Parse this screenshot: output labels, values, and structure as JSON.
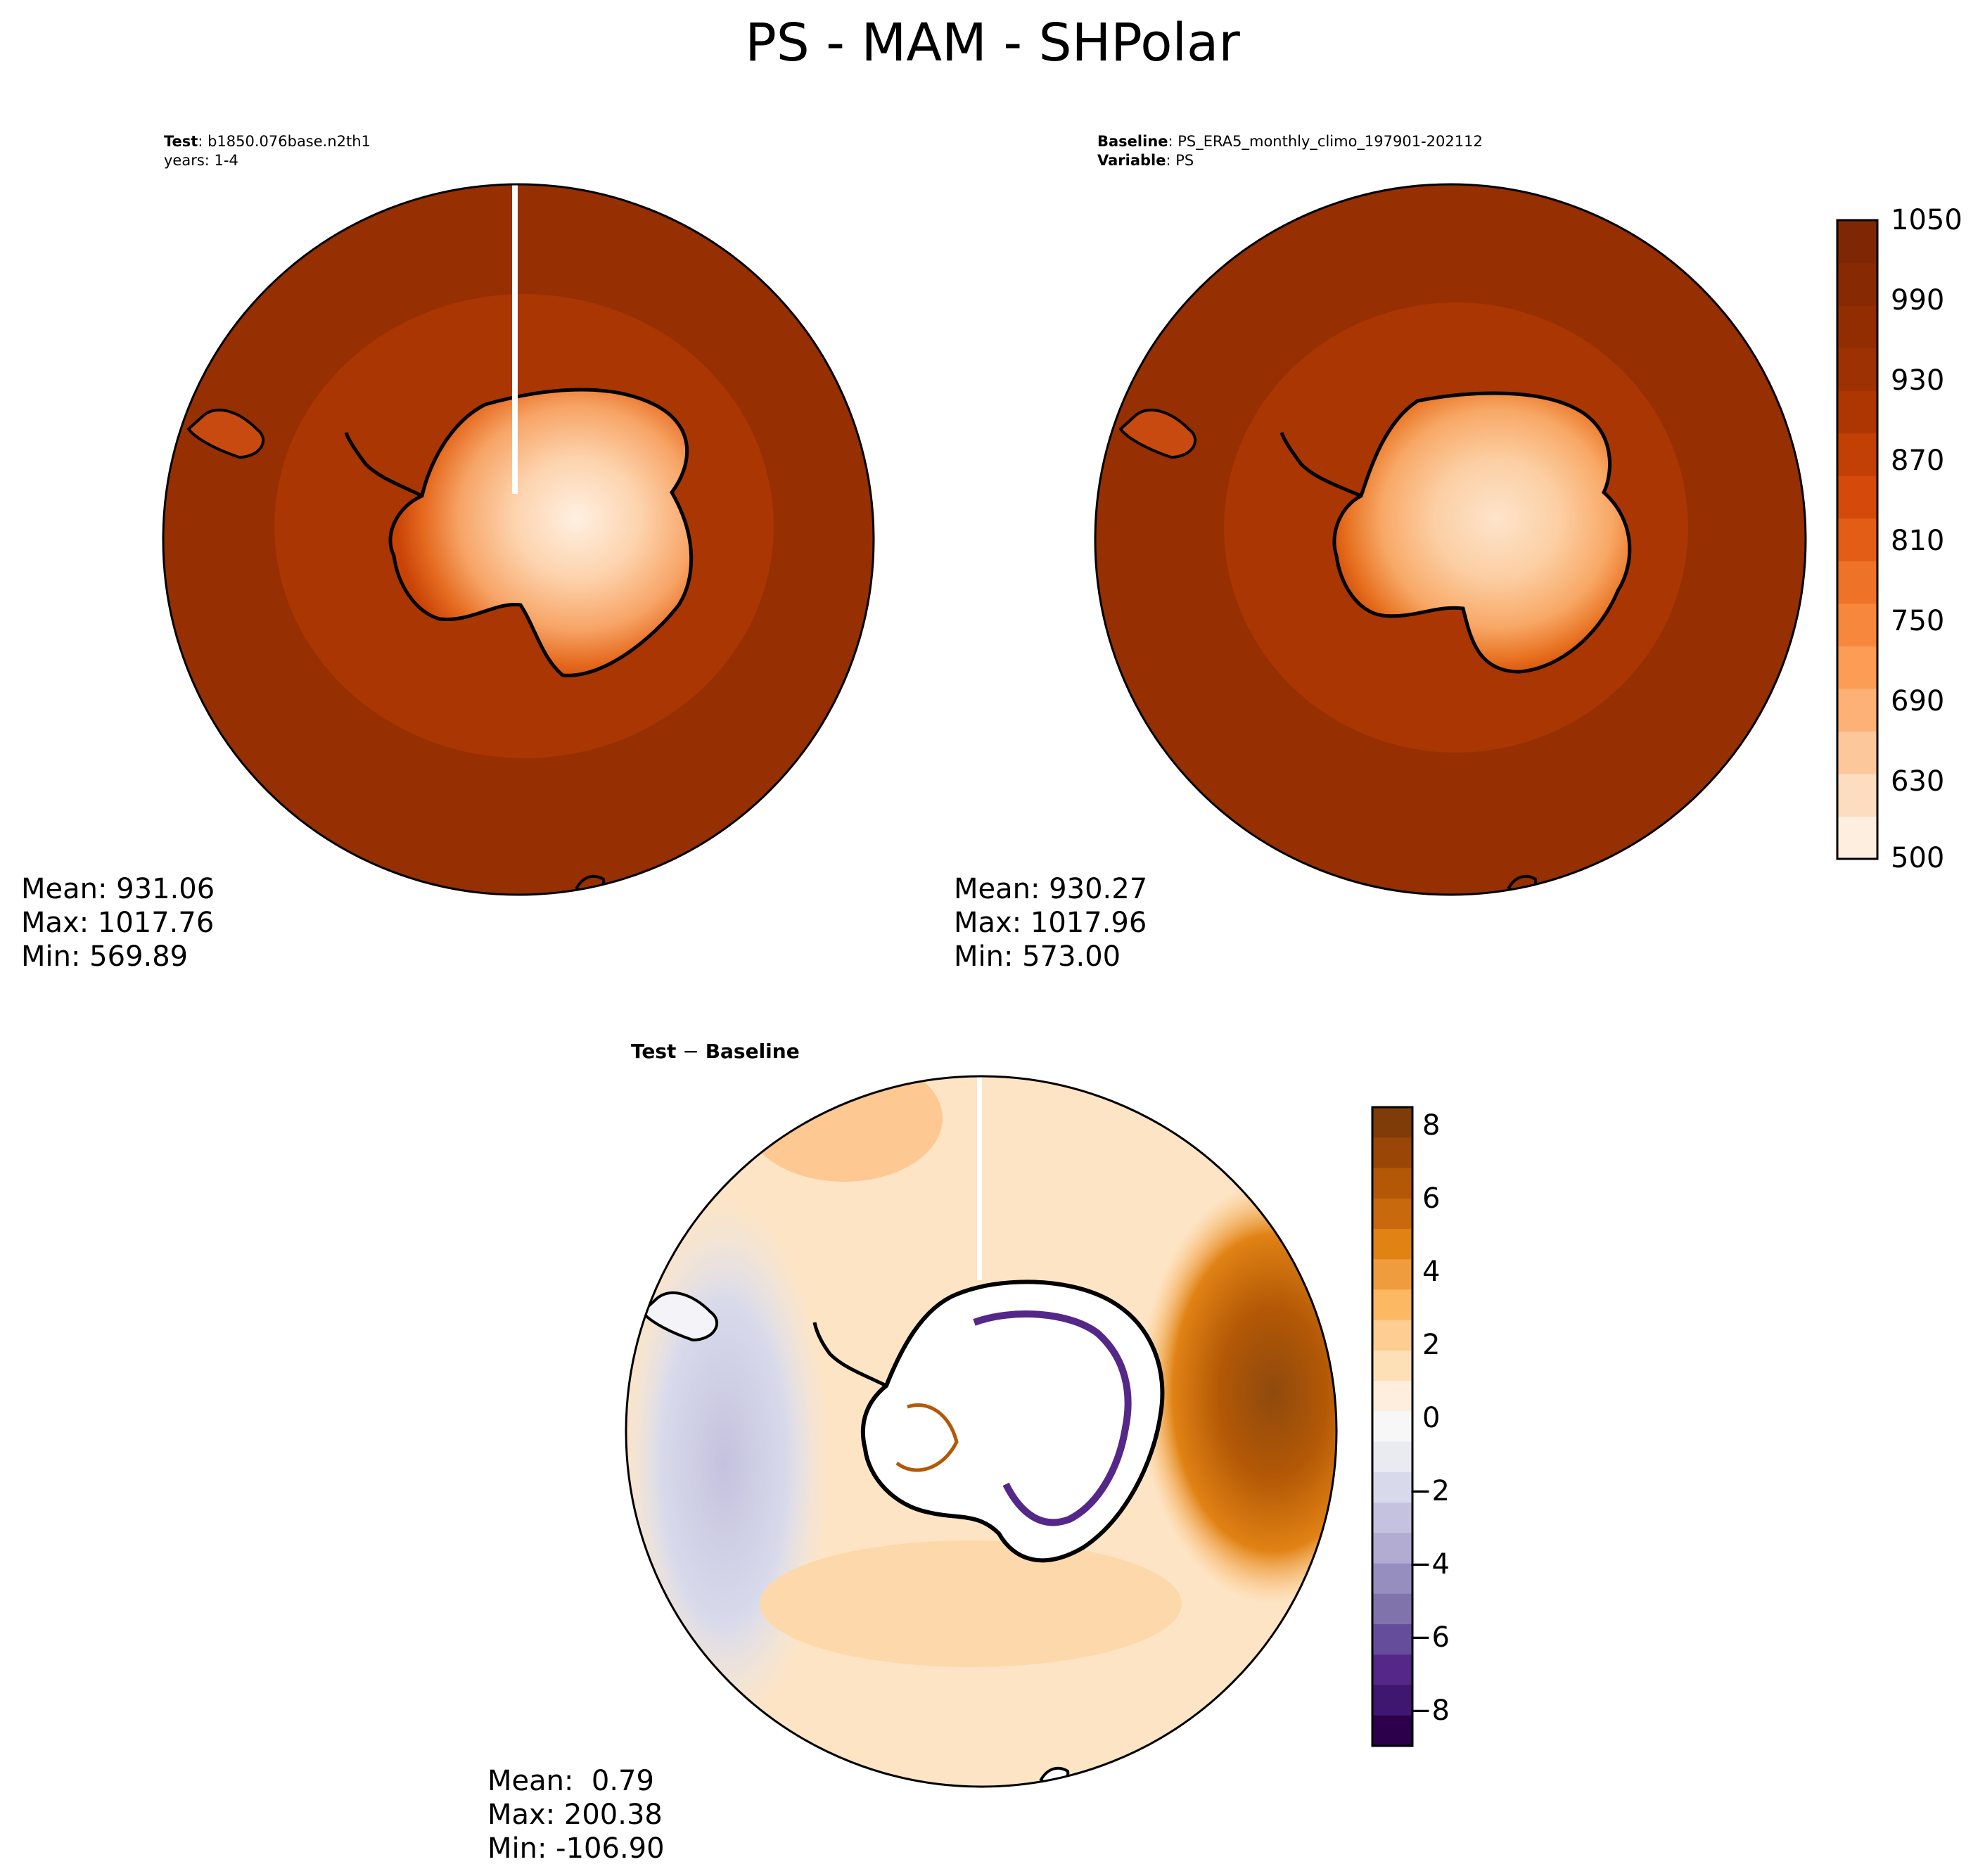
{
  "title": "PS - MAM - SHPolar",
  "test_panel": {
    "label_bold": "Test",
    "label_value": ": b1850.076base.n2th1",
    "line2": "years: 1-4",
    "stats": {
      "mean": "Mean: 931.06",
      "max": "Max: 1017.76",
      "min": "Min: 569.89"
    }
  },
  "baseline_panel": {
    "label_bold": "Baseline",
    "label_value": ": PS_ERA5_monthly_climo_197901-202112",
    "line2_bold": "Variable",
    "line2_value": ": PS",
    "stats": {
      "mean": "Mean: 930.27",
      "max": "Max: 1017.96",
      "min": "Min: 573.00"
    }
  },
  "diff_panel": {
    "label_bold_a": "Test",
    "label_sep": " − ",
    "label_bold_b": "Baseline",
    "stats": {
      "mean": "Mean:  0.79",
      "max": "Max: 200.38",
      "min": "Min: -106.90"
    }
  },
  "colorbar_main": {
    "labels": [
      "1050",
      "990",
      "930",
      "870",
      "810",
      "750",
      "690",
      "630",
      "500"
    ],
    "colors": [
      "#fdeee0",
      "#fddcbf",
      "#fdc79c",
      "#fdb176",
      "#fc9c55",
      "#f7873c",
      "#ee7228",
      "#e35d17",
      "#d54a0a",
      "#c23f05",
      "#ae3603",
      "#9e3103",
      "#922d02",
      "#872902",
      "#7f2704"
    ]
  },
  "colorbar_diff": {
    "labels": [
      "8",
      "6",
      "4",
      "2",
      "0",
      "−2",
      "−4",
      "−6",
      "−8"
    ],
    "colors_top_to_bottom": [
      "#7f3b08",
      "#9a4607",
      "#b35806",
      "#c8690d",
      "#e08214",
      "#ef9c3e",
      "#fdb863",
      "#fdcd92",
      "#fee0b6",
      "#fdeedd",
      "#f7f7f7",
      "#eaeaf1",
      "#d8daeb",
      "#c4c2de",
      "#b2abd2",
      "#978ec0",
      "#8073ac",
      "#664d9c",
      "#542788",
      "#3f1670",
      "#2d004b"
    ]
  }
}
